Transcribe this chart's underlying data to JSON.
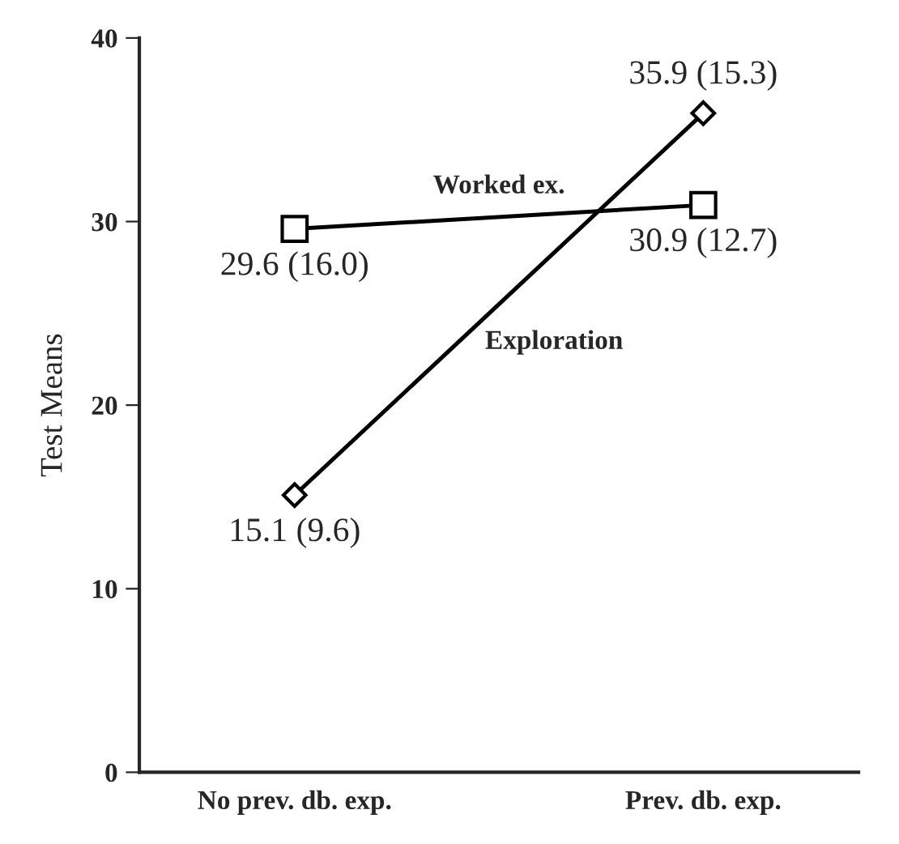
{
  "chart_data": {
    "type": "line",
    "ylabel": "Test Means",
    "categories": [
      "No prev. db. exp.",
      "Prev. db. exp."
    ],
    "series": [
      {
        "name": "Worked ex.",
        "color": "#000000",
        "marker": "square",
        "values": [
          29.6,
          30.9
        ],
        "value_labels": [
          "29.6 (16.0)",
          "30.9 (12.7)"
        ]
      },
      {
        "name": "Exploration",
        "color": "#000000",
        "marker": "diamond",
        "values": [
          15.1,
          35.9
        ],
        "value_labels": [
          "15.1 (9.6)",
          "35.9 (15.3)"
        ]
      }
    ],
    "ylim": [
      0,
      40
    ],
    "yticks": [
      0,
      10,
      20,
      30,
      40
    ],
    "grid": false,
    "legend": false,
    "line_style": "solid"
  }
}
